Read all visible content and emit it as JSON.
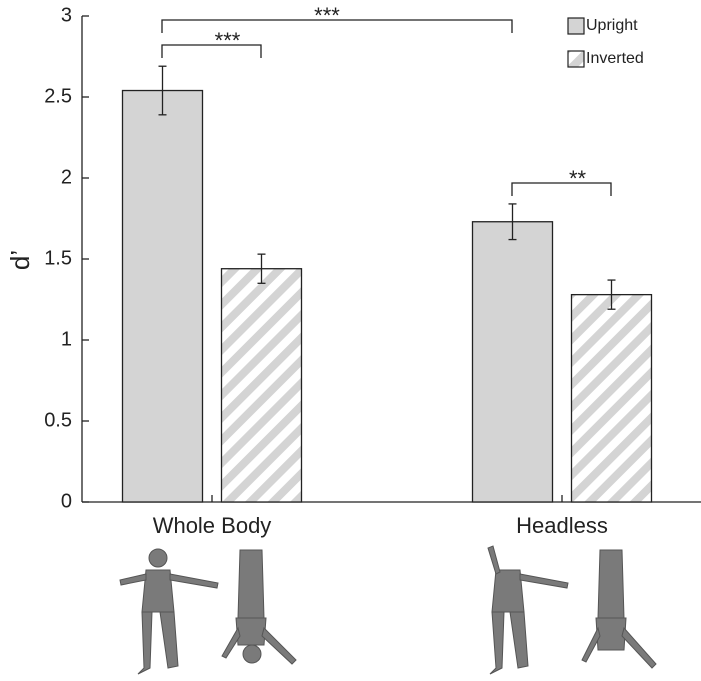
{
  "chart_data": {
    "type": "bar",
    "y_label": "d’",
    "categories": [
      "Whole Body",
      "Headless"
    ],
    "series": [
      {
        "name": "Upright",
        "color": "#d4d4d4",
        "pattern": "solid",
        "values": [
          2.54,
          1.73
        ],
        "errors": [
          0.15,
          0.11
        ]
      },
      {
        "name": "Inverted",
        "color": "#d4d4d4",
        "pattern": "hatch",
        "values": [
          1.44,
          1.28
        ],
        "errors": [
          0.09,
          0.09
        ]
      }
    ],
    "ylim": [
      0,
      3
    ],
    "yticks": [
      0,
      0.5,
      1,
      1.5,
      2,
      2.5,
      3
    ],
    "legend": "upper right",
    "annotations": [
      {
        "text": "***"
      },
      {
        "text": "***"
      },
      {
        "text": "**"
      }
    ]
  }
}
